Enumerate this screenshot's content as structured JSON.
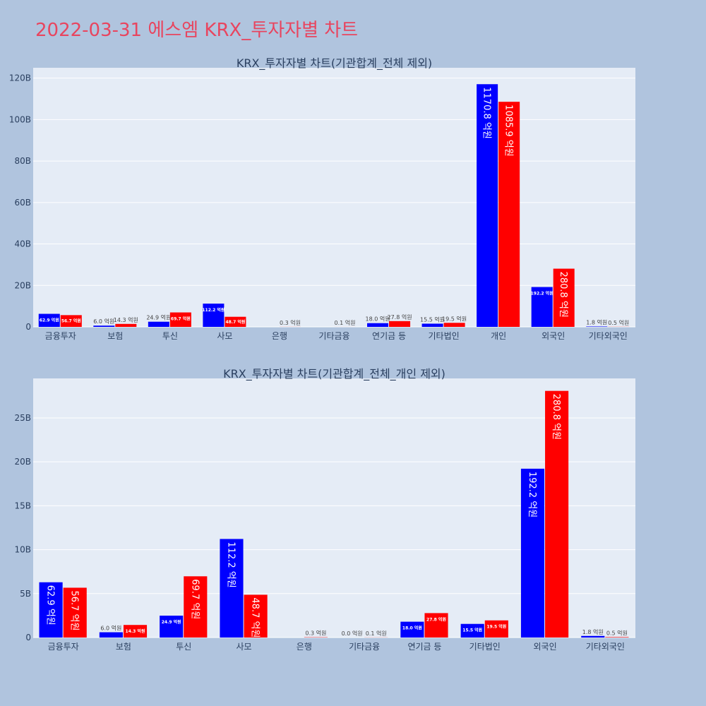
{
  "page": {
    "title": "2022-03-31 에스엠 KRX_투자자별 차트"
  },
  "colors": {
    "background": "#b0c4de",
    "plot_bg": "#e5ecf6",
    "title": "#e8455f",
    "buy": "#0000ff",
    "sell": "#ff0000",
    "grid": "#ffffff",
    "text": "#2a3f5f"
  },
  "chart_data": [
    {
      "type": "bar",
      "title": "KRX_투자자별 차트(기관합계_전체 제외)",
      "categories": [
        "금융투자",
        "보험",
        "투신",
        "사모",
        "은행",
        "기타금융",
        "연기금 등",
        "기타법인",
        "개인",
        "외국인",
        "기타외국인"
      ],
      "ylim": [
        0,
        125
      ],
      "yticks": [
        0,
        20,
        40,
        60,
        80,
        100,
        120
      ],
      "ytick_labels": [
        "0",
        "20B",
        "40B",
        "60B",
        "80B",
        "100B",
        "120B"
      ],
      "series": [
        {
          "color": "#0000ff",
          "values": [
            6.29,
            0.6,
            2.49,
            11.22,
            0,
            0,
            1.8,
            1.55,
            117.08,
            19.22,
            0.18
          ],
          "labels": [
            "62.9 억원",
            "6.0 억원",
            "24.9 억원",
            "112.2 억원",
            "",
            "",
            "18.0 억원",
            "15.5 억원",
            "1170.8 억원",
            "192.2 억원",
            "1.8 억원"
          ]
        },
        {
          "color": "#ff0000",
          "values": [
            5.67,
            1.43,
            6.97,
            4.87,
            0.03,
            0.01,
            2.78,
            1.95,
            108.59,
            28.08,
            0.05
          ],
          "labels": [
            "56.7 억원",
            "14.3 억원",
            "69.7 억원",
            "48.7 억원",
            "0.3 억원",
            "0.1 억원",
            "27.8 억원",
            "19.5 억원",
            "1085.9 억원",
            "280.8 억원",
            "0.5 억원"
          ]
        }
      ]
    },
    {
      "type": "bar",
      "title": "KRX_투자자별 차트(기관합계_전체_개인 제외)",
      "categories": [
        "금융투자",
        "보험",
        "투신",
        "사모",
        "은행",
        "기타금융",
        "연기금 등",
        "기타법인",
        "외국인",
        "기타외국인"
      ],
      "ylim": [
        0,
        29.5
      ],
      "yticks": [
        0,
        5,
        10,
        15,
        20,
        25
      ],
      "ytick_labels": [
        "0",
        "5B",
        "10B",
        "15B",
        "20B",
        "25B"
      ],
      "series": [
        {
          "color": "#0000ff",
          "values": [
            6.29,
            0.6,
            2.49,
            11.22,
            0,
            0,
            1.8,
            1.55,
            19.22,
            0.18
          ],
          "labels": [
            "62.9 억원",
            "6.0 억원",
            "24.9 억원",
            "112.2 억원",
            "",
            "0.0 억원",
            "18.0 억원",
            "15.5 억원",
            "192.2 억원",
            "1.8 억원"
          ]
        },
        {
          "color": "#ff0000",
          "values": [
            5.67,
            1.43,
            6.97,
            4.87,
            0.03,
            0.01,
            2.78,
            1.95,
            28.08,
            0.05
          ],
          "labels": [
            "56.7 억원",
            "14.3 억원",
            "69.7 억원",
            "48.7 억원",
            "0.3 억원",
            "0.1 억원",
            "27.8 억원",
            "19.5 억원",
            "280.8 억원",
            "0.5 억원"
          ]
        }
      ]
    }
  ]
}
